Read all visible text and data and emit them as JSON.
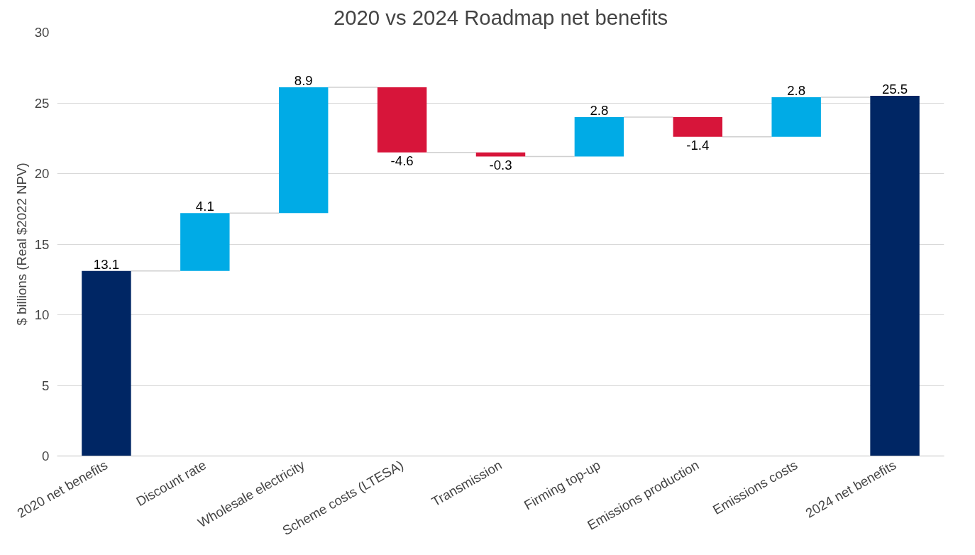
{
  "chart_data": {
    "type": "bar",
    "title": "2020 vs 2024 Roadmap net benefits",
    "ylabel": "$ billions (Real $2022 NPV)",
    "categories": [
      "2020 net benefits",
      "Discount rate",
      "Wholesale electricity",
      "Scheme costs (LTESA)",
      "Transmission",
      "Firming top-up",
      "Emissions production",
      "Emissions costs",
      "2024 net benefits"
    ],
    "values": [
      13.1,
      4.1,
      8.9,
      -4.6,
      -0.3,
      2.8,
      -1.4,
      2.8,
      25.5
    ],
    "base": [
      0,
      13.1,
      17.2,
      26.1,
      21.5,
      21.2,
      24.0,
      22.6,
      0
    ],
    "colors": [
      "#002664",
      "#00abe6",
      "#00abe6",
      "#d7153a",
      "#d7153a",
      "#00abe6",
      "#d7153a",
      "#00abe6",
      "#002664"
    ],
    "ylim": [
      0,
      30
    ],
    "yticks": [
      0,
      5,
      10,
      15,
      20,
      25,
      30
    ],
    "grid": "y",
    "data_labels": true
  }
}
